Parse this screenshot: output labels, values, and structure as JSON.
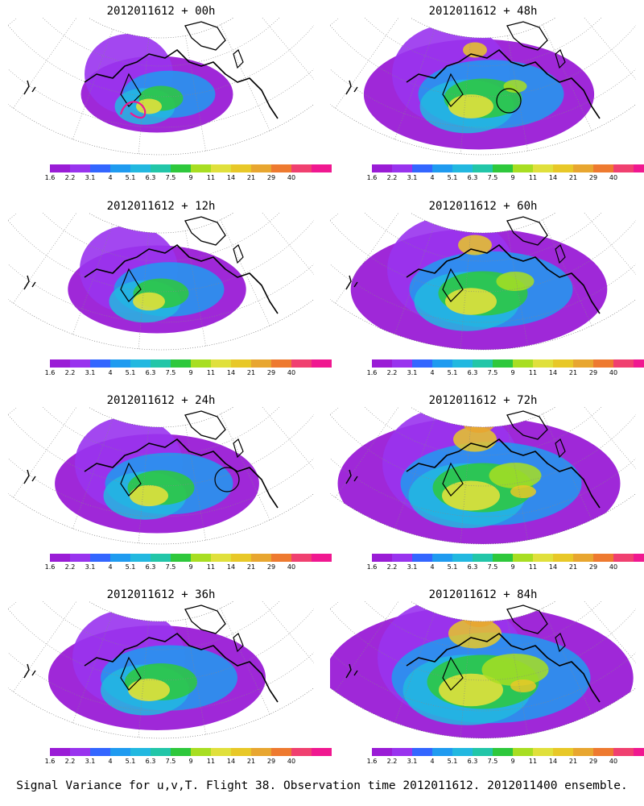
{
  "caption": "Signal Variance for u,v,T. Flight 38. Observation time 2012011612. 2012011400 ensemble.",
  "colorbar": {
    "colors": [
      "#9a1cd6",
      "#9933ee",
      "#3366ff",
      "#1f9bf0",
      "#22b8e0",
      "#22c6a8",
      "#2ec83c",
      "#a8de22",
      "#e0e03c",
      "#e8c828",
      "#e8a630",
      "#ee7a30",
      "#f04070",
      "#f01890"
    ],
    "labels": [
      "1.6",
      "2.2",
      "3.1",
      "4",
      "5.1",
      "6.3",
      "7.5",
      "9",
      "11",
      "14",
      "21",
      "29",
      "40"
    ]
  },
  "chart_data": [
    {
      "type": "heatmap",
      "title": "2012011612 + 00h",
      "lead_hours": 0,
      "intensity": 0.25,
      "observation_circle": false,
      "highlight_contour": true
    },
    {
      "type": "heatmap",
      "title": "2012011612 + 12h",
      "lead_hours": 12,
      "intensity": 0.35,
      "observation_circle": false,
      "highlight_contour": false
    },
    {
      "type": "heatmap",
      "title": "2012011612 + 24h",
      "lead_hours": 24,
      "intensity": 0.45,
      "observation_circle": true,
      "highlight_contour": false
    },
    {
      "type": "heatmap",
      "title": "2012011612 + 36h",
      "lead_hours": 36,
      "intensity": 0.5,
      "observation_circle": false,
      "highlight_contour": false
    },
    {
      "type": "heatmap",
      "title": "2012011612 + 48h",
      "lead_hours": 48,
      "intensity": 0.55,
      "observation_circle": true,
      "highlight_contour": false
    },
    {
      "type": "heatmap",
      "title": "2012011612 + 60h",
      "lead_hours": 60,
      "intensity": 0.65,
      "observation_circle": false,
      "highlight_contour": false
    },
    {
      "type": "heatmap",
      "title": "2012011612 + 72h",
      "lead_hours": 72,
      "intensity": 0.75,
      "observation_circle": false,
      "highlight_contour": false
    },
    {
      "type": "heatmap",
      "title": "2012011612 + 84h",
      "lead_hours": 84,
      "intensity": 0.85,
      "observation_circle": false,
      "highlight_contour": false
    }
  ]
}
